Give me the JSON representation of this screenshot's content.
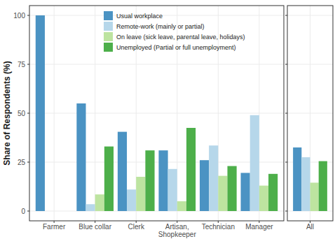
{
  "chart_data": [
    {
      "type": "bar",
      "y_label": "Share of Respondents (%)",
      "categories": [
        "Farmer",
        "Blue collar",
        "Clerk",
        "Artisan, Shopkeeper",
        "Technician",
        "Manager"
      ],
      "series": [
        {
          "name": "Usual workplace",
          "color": "#4b93c3",
          "values": [
            100,
            55,
            40.5,
            31,
            26,
            19.5
          ]
        },
        {
          "name": "Remote-work (mainly or partial)",
          "color": "#b6d7ea",
          "values": [
            0,
            3.5,
            11,
            21.5,
            33.5,
            49
          ]
        },
        {
          "name": "On leave (sick leave, parental leave, holidays)",
          "color": "#bde4a0",
          "values": [
            0,
            8.5,
            17.5,
            5,
            18,
            13
          ]
        },
        {
          "name": "Unemployed (Partial or full unemployment)",
          "color": "#4daf4a",
          "values": [
            0,
            33,
            31,
            42.5,
            23,
            19
          ]
        }
      ],
      "ylim": [
        -5,
        105
      ],
      "yticks": [
        0,
        25,
        50,
        75,
        100
      ],
      "grid": true,
      "legend": "top"
    },
    {
      "type": "bar",
      "categories": [
        "All"
      ],
      "series": [
        {
          "color": "#4b93c3",
          "values": [
            32.5
          ]
        },
        {
          "color": "#b6d7ea",
          "values": [
            27.5
          ]
        },
        {
          "color": "#bde4a0",
          "values": [
            14.5
          ]
        },
        {
          "color": "#4daf4a",
          "values": [
            25.5
          ]
        }
      ],
      "ylim": [
        -5,
        105
      ],
      "yticks": [
        0,
        25,
        50,
        75,
        100
      ],
      "grid": true,
      "tick_labels": "x"
    }
  ]
}
